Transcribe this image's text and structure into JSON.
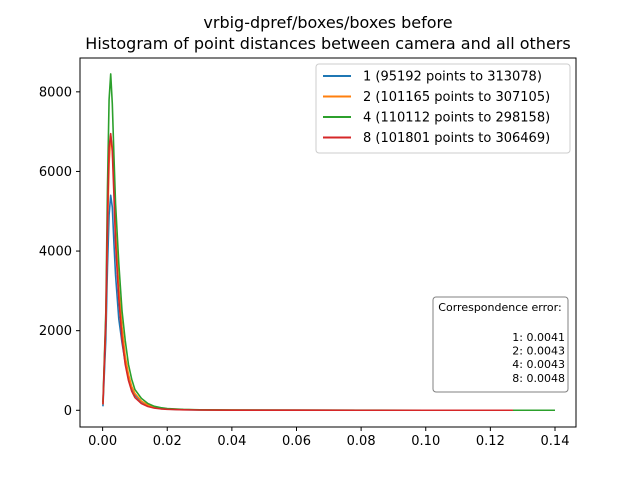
{
  "chart_data": {
    "type": "line",
    "title": "vrbig-dpref/boxes/boxes before",
    "subtitle": "Histogram of point distances between camera and all others",
    "xlabel": "",
    "ylabel": "",
    "xlim": [
      -0.007,
      0.1465
    ],
    "ylim": [
      -420,
      8850
    ],
    "xticks": [
      0.0,
      0.02,
      0.04,
      0.06,
      0.08,
      0.1,
      0.12,
      0.14
    ],
    "xtick_labels": [
      "0.00",
      "0.02",
      "0.04",
      "0.06",
      "0.08",
      "0.10",
      "0.12",
      "0.14"
    ],
    "yticks": [
      0,
      2000,
      4000,
      6000,
      8000
    ],
    "ytick_labels": [
      "0",
      "2000",
      "4000",
      "6000",
      "8000"
    ],
    "grid": false,
    "legend_position": "top-right",
    "series": [
      {
        "name": "1 (95192 points to 313078)",
        "color": "#1f77b4",
        "x": [
          0.0001,
          0.001,
          0.0015,
          0.002,
          0.0025,
          0.003,
          0.0035,
          0.004,
          0.005,
          0.006,
          0.007,
          0.008,
          0.009,
          0.01,
          0.012,
          0.014,
          0.016,
          0.018,
          0.02,
          0.025,
          0.03,
          0.04,
          0.06,
          0.08,
          0.1,
          0.12,
          0.127
        ],
        "y": [
          100,
          1800,
          3600,
          4900,
          5400,
          5100,
          4200,
          3400,
          2300,
          1700,
          1200,
          850,
          550,
          380,
          220,
          120,
          70,
          45,
          30,
          15,
          8,
          4,
          2,
          1,
          1,
          1,
          1
        ]
      },
      {
        "name": "2 (101165 points to 307105)",
        "color": "#ff7f0e",
        "x": [
          0.0001,
          0.001,
          0.0015,
          0.002,
          0.0025,
          0.003,
          0.0035,
          0.004,
          0.005,
          0.006,
          0.007,
          0.008,
          0.009,
          0.01,
          0.012,
          0.014,
          0.016,
          0.018,
          0.02,
          0.025,
          0.03,
          0.04,
          0.06,
          0.08,
          0.1,
          0.12,
          0.127
        ],
        "y": [
          150,
          2200,
          4500,
          6200,
          6900,
          6600,
          5700,
          4500,
          3100,
          2100,
          1350,
          900,
          600,
          420,
          230,
          130,
          80,
          50,
          35,
          18,
          10,
          5,
          2,
          1,
          1,
          1,
          1
        ]
      },
      {
        "name": "4 (110112 points to 298158)",
        "color": "#2ca02c",
        "x": [
          0.0001,
          0.001,
          0.0015,
          0.002,
          0.0025,
          0.003,
          0.0035,
          0.004,
          0.005,
          0.006,
          0.007,
          0.008,
          0.009,
          0.01,
          0.012,
          0.014,
          0.016,
          0.018,
          0.02,
          0.025,
          0.03,
          0.04,
          0.06,
          0.08,
          0.1,
          0.12,
          0.14
        ],
        "y": [
          200,
          2500,
          5600,
          7800,
          8450,
          7700,
          6400,
          5200,
          3700,
          2500,
          1750,
          1150,
          780,
          520,
          300,
          170,
          100,
          65,
          45,
          22,
          12,
          6,
          3,
          2,
          1,
          1,
          1
        ]
      },
      {
        "name": "8 (101801 points to 306469)",
        "color": "#d62728",
        "x": [
          0.0001,
          0.001,
          0.0015,
          0.002,
          0.0025,
          0.003,
          0.0035,
          0.004,
          0.005,
          0.006,
          0.007,
          0.008,
          0.009,
          0.01,
          0.012,
          0.014,
          0.016,
          0.018,
          0.02,
          0.025,
          0.03,
          0.04,
          0.06,
          0.08,
          0.1,
          0.12,
          0.127
        ],
        "y": [
          150,
          2300,
          4800,
          6600,
          6950,
          6500,
          5400,
          4200,
          2800,
          1800,
          1150,
          750,
          480,
          320,
          170,
          95,
          55,
          35,
          25,
          12,
          7,
          3,
          2,
          1,
          1,
          1,
          1
        ]
      }
    ],
    "annotation_box": {
      "heading": "Correspondence error:",
      "lines": [
        "1: 0.0041",
        "2: 0.0043",
        "4: 0.0043",
        "8: 0.0048"
      ]
    }
  }
}
